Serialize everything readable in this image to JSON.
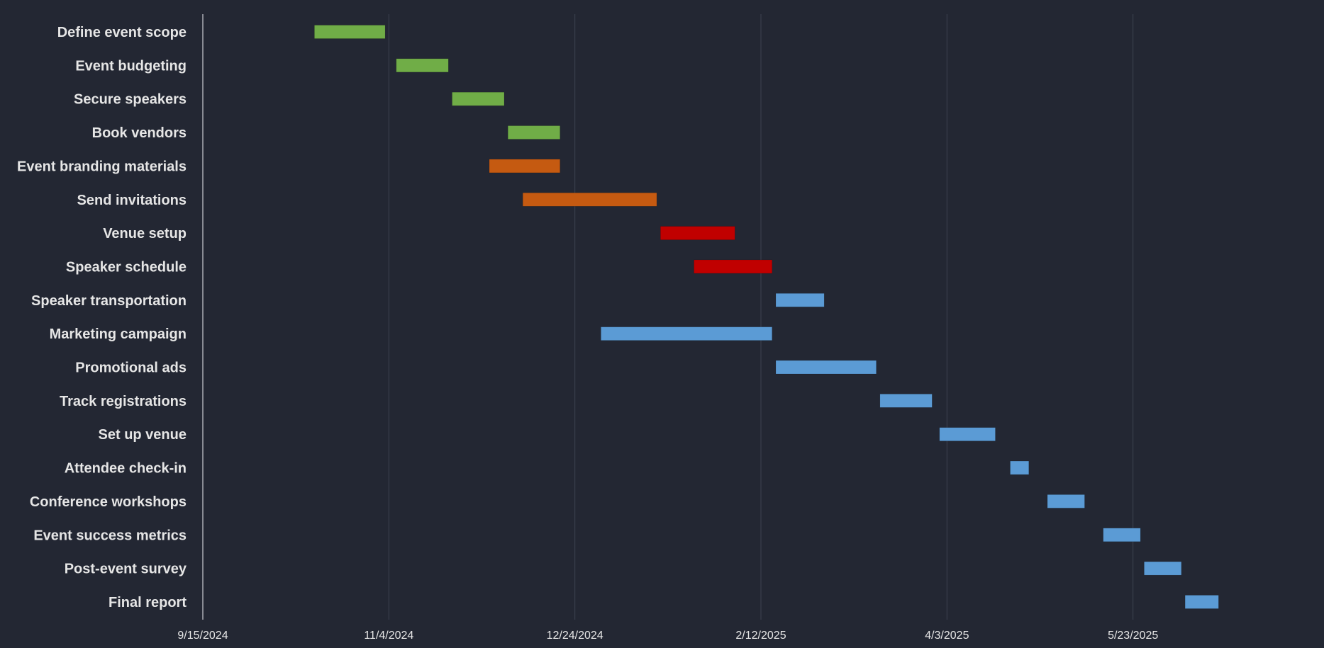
{
  "chart_data": {
    "type": "gantt",
    "title": "",
    "xlabel": "",
    "ylabel": "",
    "x_range": [
      "2024-09-15",
      "2025-07-12"
    ],
    "x_ticks": [
      "9/15/2024",
      "11/4/2024",
      "12/24/2024",
      "2/12/2025",
      "4/3/2025",
      "5/23/2025"
    ],
    "grid": true,
    "legend": "none",
    "phase_colors": {
      "planning": "#70ad47",
      "promotion": "#c55a11",
      "scheduling": "#c00000",
      "execution": "#5b9bd5"
    },
    "tasks": [
      {
        "label": "Define event scope",
        "start": "2024-10-15",
        "end": "2024-11-03",
        "phase": "planning"
      },
      {
        "label": "Event budgeting",
        "start": "2024-11-06",
        "end": "2024-11-20",
        "phase": "planning"
      },
      {
        "label": "Secure speakers",
        "start": "2024-11-21",
        "end": "2024-12-05",
        "phase": "planning"
      },
      {
        "label": "Book vendors",
        "start": "2024-12-06",
        "end": "2024-12-20",
        "phase": "planning"
      },
      {
        "label": "Event branding materials",
        "start": "2024-12-01",
        "end": "2024-12-20",
        "phase": "promotion"
      },
      {
        "label": "Send invitations",
        "start": "2024-12-10",
        "end": "2025-01-15",
        "phase": "promotion"
      },
      {
        "label": "Venue setup",
        "start": "2025-01-16",
        "end": "2025-02-05",
        "phase": "scheduling"
      },
      {
        "label": "Speaker schedule",
        "start": "2025-01-25",
        "end": "2025-02-15",
        "phase": "scheduling"
      },
      {
        "label": "Speaker transportation",
        "start": "2025-02-16",
        "end": "2025-03-01",
        "phase": "execution"
      },
      {
        "label": "Marketing campaign",
        "start": "2024-12-31",
        "end": "2025-02-15",
        "phase": "execution"
      },
      {
        "label": "Promotional ads",
        "start": "2025-02-16",
        "end": "2025-03-15",
        "phase": "execution"
      },
      {
        "label": "Track registrations",
        "start": "2025-03-16",
        "end": "2025-03-30",
        "phase": "execution"
      },
      {
        "label": "Set up venue",
        "start": "2025-04-01",
        "end": "2025-04-16",
        "phase": "execution"
      },
      {
        "label": "Attendee check-in",
        "start": "2025-04-20",
        "end": "2025-04-25",
        "phase": "execution"
      },
      {
        "label": "Conference workshops",
        "start": "2025-04-30",
        "end": "2025-05-10",
        "phase": "execution"
      },
      {
        "label": "Event success metrics",
        "start": "2025-05-15",
        "end": "2025-05-25",
        "phase": "execution"
      },
      {
        "label": "Post-event survey",
        "start": "2025-05-26",
        "end": "2025-06-05",
        "phase": "execution"
      },
      {
        "label": "Final report",
        "start": "2025-06-06",
        "end": "2025-06-15",
        "phase": "execution"
      }
    ]
  }
}
